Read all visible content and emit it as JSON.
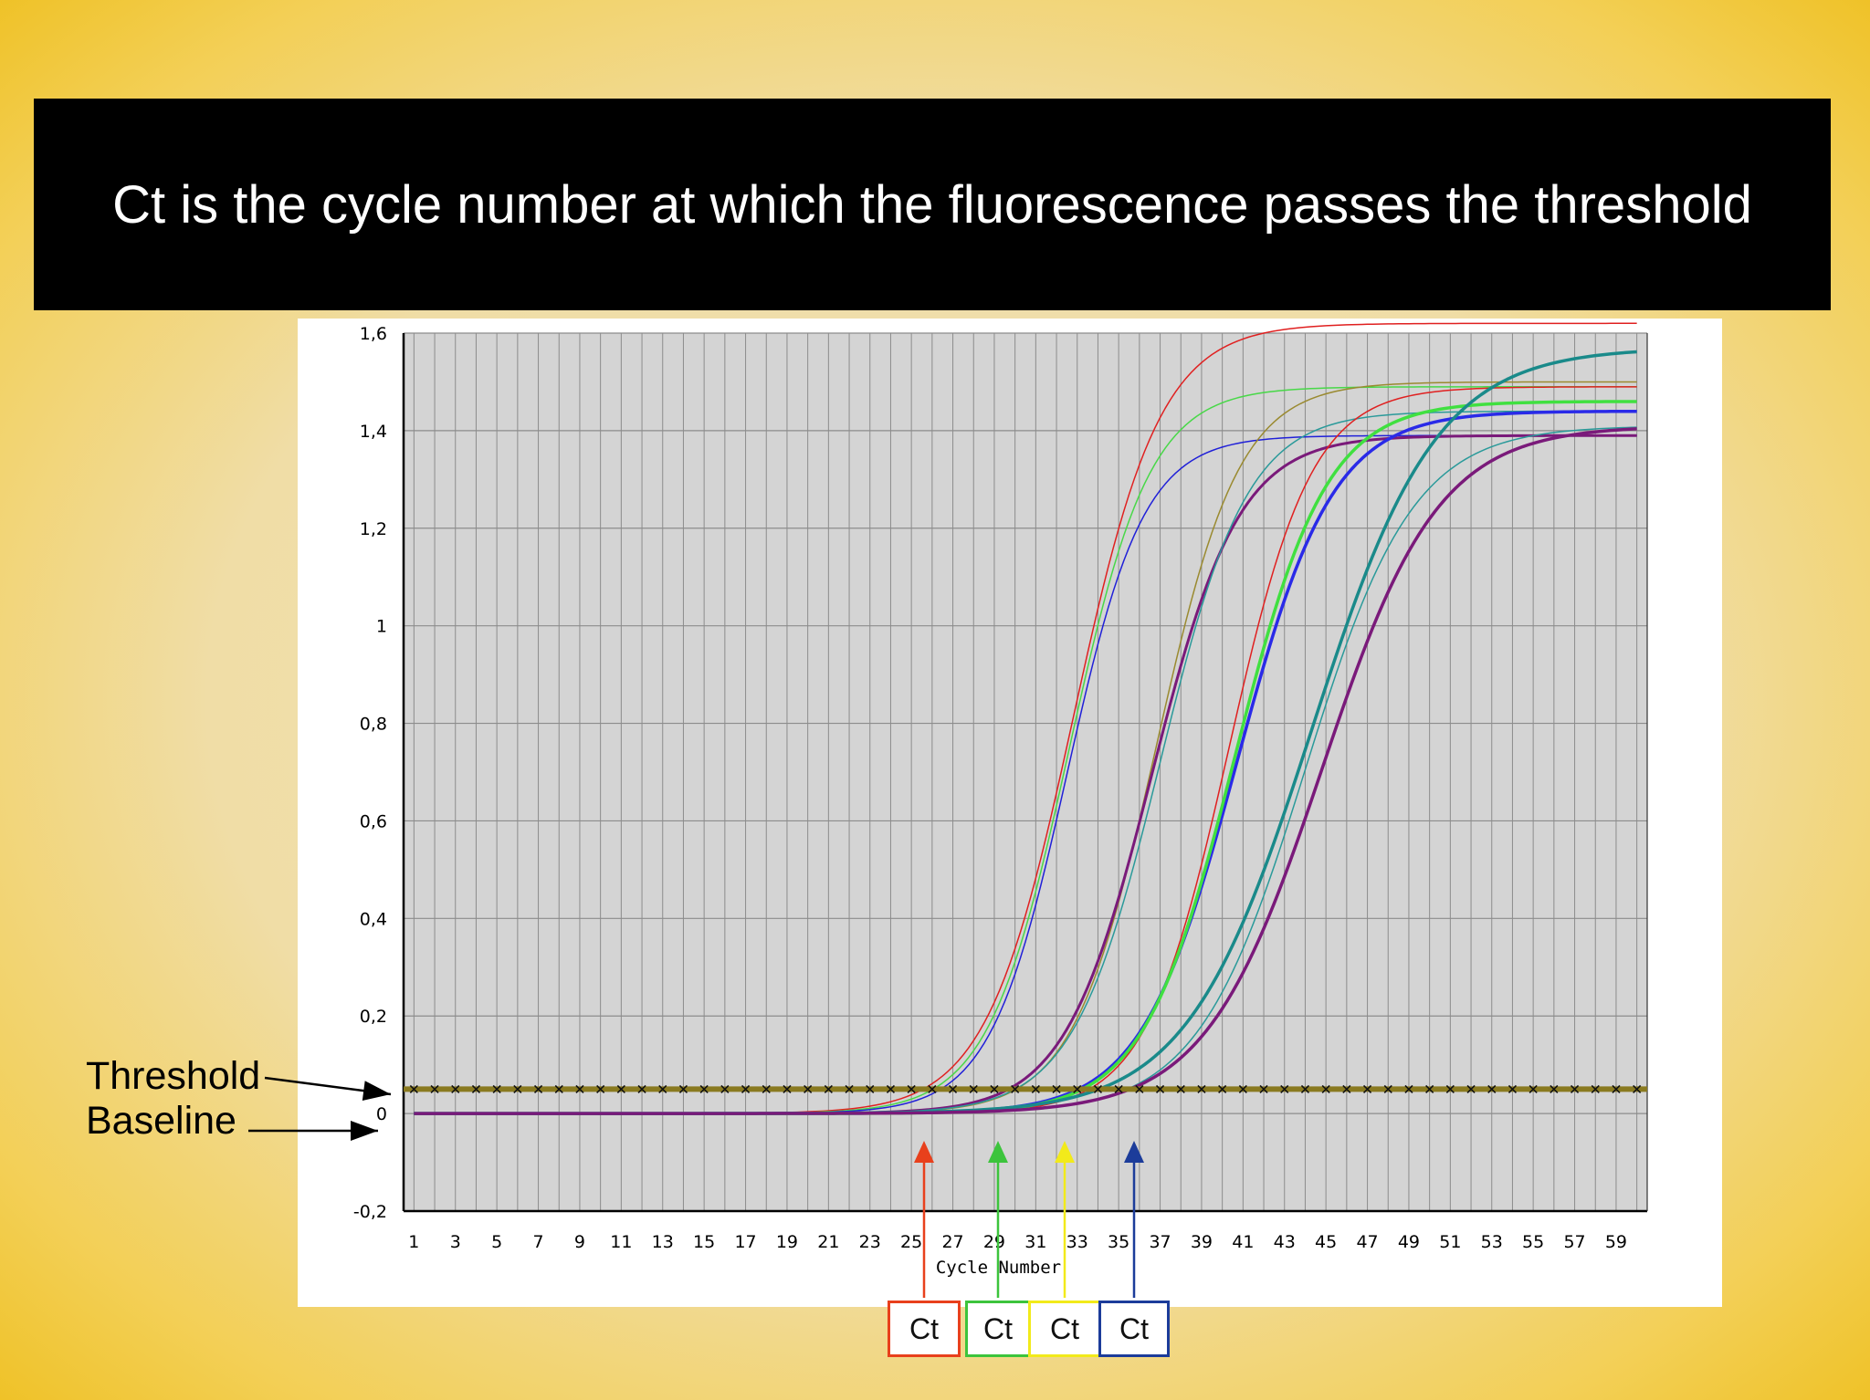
{
  "slide": {
    "title": "Ct is the cycle number at which the fluorescence passes the threshold"
  },
  "annotations": {
    "threshold_label": "Threshold",
    "baseline_label": "Baseline",
    "ct_boxes": [
      {
        "label": "Ct",
        "color": "#e8401c",
        "cycle": 26
      },
      {
        "label": "Ct",
        "color": "#3cc43c",
        "cycle": 30
      },
      {
        "label": "Ct",
        "color": "#f2ea1a",
        "cycle": 33
      },
      {
        "label": "Ct",
        "color": "#1c3c9a",
        "cycle": 36.3
      }
    ]
  },
  "chart_data": {
    "type": "line",
    "title": "",
    "xlabel": "Cycle Number",
    "ylabel": "",
    "xlim": [
      0.5,
      60.5
    ],
    "ylim": [
      -0.2,
      1.6
    ],
    "x_ticks": [
      1,
      3,
      5,
      7,
      9,
      11,
      13,
      15,
      17,
      19,
      21,
      23,
      25,
      27,
      29,
      31,
      33,
      35,
      37,
      39,
      41,
      43,
      45,
      47,
      49,
      51,
      53,
      55,
      57,
      59
    ],
    "y_ticks": [
      {
        "value": 1.6,
        "label": "1,6"
      },
      {
        "value": 1.4,
        "label": "1,4"
      },
      {
        "value": 1.2,
        "label": "1,2"
      },
      {
        "value": 1.0,
        "label": "1"
      },
      {
        "value": 0.8,
        "label": "0,8"
      },
      {
        "value": 0.6,
        "label": "0,6"
      },
      {
        "value": 0.4,
        "label": "0,4"
      },
      {
        "value": 0.2,
        "label": "0,2"
      },
      {
        "value": 0.0,
        "label": "0"
      },
      {
        "value": -0.2,
        "label": "-0,2"
      }
    ],
    "grid": true,
    "background": "#d4d4d4",
    "threshold": {
      "value": 0.05,
      "color": "#8a7a20"
    },
    "series_model": "sigmoid: y = plateau / (1 + exp(-(x - midpoint)/slope))",
    "series": [
      {
        "color": "#e02020",
        "width": 1.5,
        "midpoint": 32.8,
        "slope": 2.1,
        "plateau": 1.62
      },
      {
        "color": "#48d848",
        "width": 1.5,
        "midpoint": 32.6,
        "slope": 1.95,
        "plateau": 1.49
      },
      {
        "color": "#2020d8",
        "width": 1.5,
        "midpoint": 32.5,
        "slope": 1.85,
        "plateau": 1.39
      },
      {
        "color": "#9a8a30",
        "width": 1.5,
        "midpoint": 36.8,
        "slope": 2.0,
        "plateau": 1.5
      },
      {
        "color": "#7a1a7a",
        "width": 3,
        "midpoint": 36.6,
        "slope": 2.1,
        "plateau": 1.39
      },
      {
        "color": "#2a9a9a",
        "width": 1.5,
        "midpoint": 37.0,
        "slope": 2.1,
        "plateau": 1.44
      },
      {
        "color": "#e02020",
        "width": 1.5,
        "midpoint": 40.3,
        "slope": 2.0,
        "plateau": 1.49
      },
      {
        "color": "#2a2ae8",
        "width": 3.5,
        "midpoint": 40.7,
        "slope": 2.3,
        "plateau": 1.44
      },
      {
        "color": "#40e040",
        "width": 3.5,
        "midpoint": 40.6,
        "slope": 2.2,
        "plateau": 1.46
      },
      {
        "color": "#1a8a8a",
        "width": 3.5,
        "midpoint": 44.3,
        "slope": 3.0,
        "plateau": 1.57
      },
      {
        "color": "#2a9a9a",
        "width": 1.5,
        "midpoint": 44.0,
        "slope": 2.6,
        "plateau": 1.41
      },
      {
        "color": "#7a1a7a",
        "width": 3.5,
        "midpoint": 44.8,
        "slope": 2.8,
        "plateau": 1.41
      }
    ]
  }
}
